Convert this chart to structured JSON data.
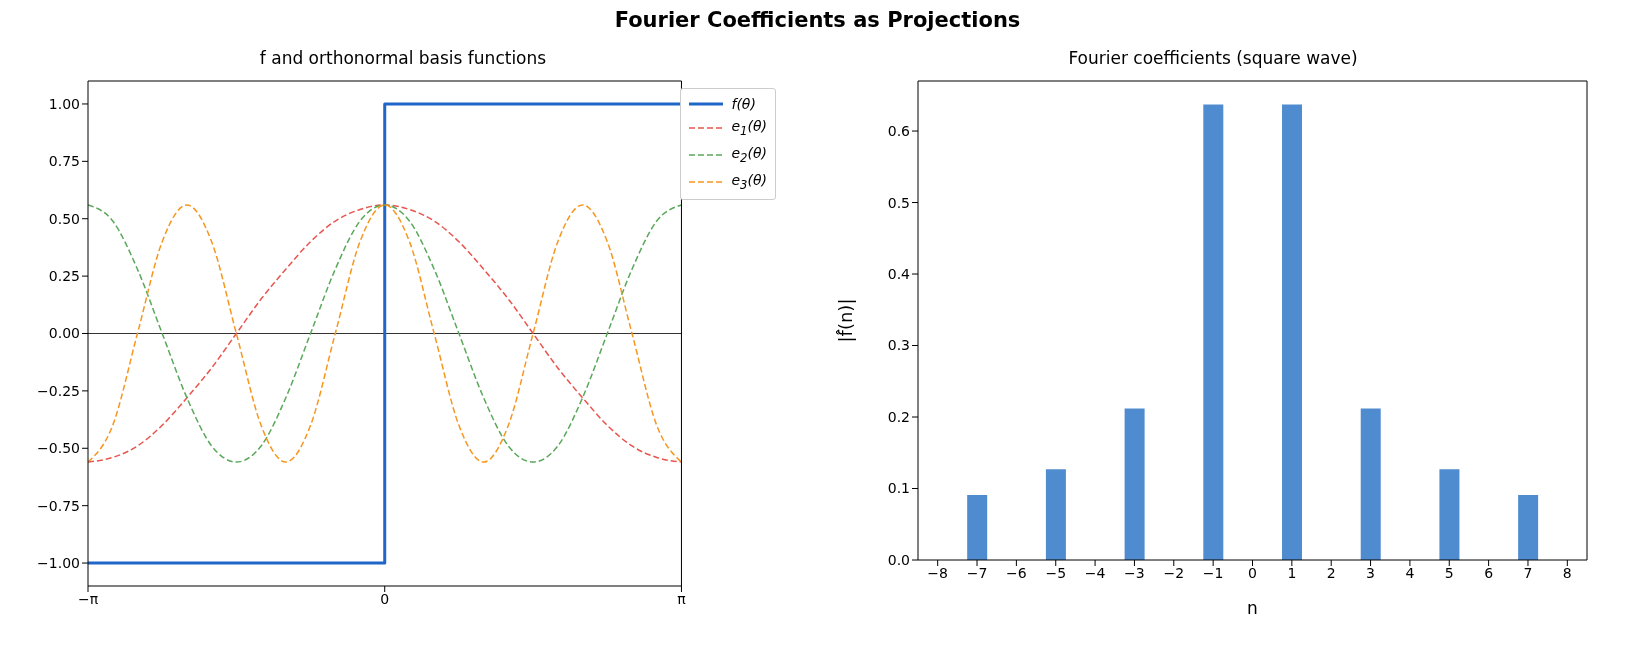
{
  "chart_data": [
    {
      "type": "line",
      "title": "Fourier Coefficients as Projections",
      "subtitle": "f and orthonormal basis functions",
      "xlim": [
        -3.1416,
        3.1416
      ],
      "xticks": [
        {
          "value": -3.1416,
          "label": "−π"
        },
        0,
        {
          "value": 3.1416,
          "label": "π"
        }
      ],
      "ylim": [
        -1.1,
        1.1
      ],
      "yticks": [
        {
          "value": -1,
          "label": "−1.00"
        },
        {
          "value": -0.75,
          "label": "−0.75"
        },
        {
          "value": -0.5,
          "label": "−0.50"
        },
        {
          "value": -0.25,
          "label": "−0.25"
        },
        {
          "value": 0,
          "label": "0.00"
        },
        {
          "value": 0.25,
          "label": "0.25"
        },
        {
          "value": 0.5,
          "label": "0.50"
        },
        {
          "value": 0.75,
          "label": "0.75"
        },
        {
          "value": 1,
          "label": "1.00"
        }
      ],
      "legend": "top right",
      "marker": "none",
      "ref_lines": [
        {
          "axis": "y",
          "value": 0,
          "color": "#000000"
        }
      ],
      "series": [
        {
          "name": "f(θ)",
          "type": "step",
          "color": "#1f66c8",
          "line_style": "solid",
          "x": [
            -3.1416,
            0,
            3.1416
          ],
          "values": [
            -1,
            1,
            1
          ]
        },
        {
          "name": "e$_{1}$(θ)",
          "type": "line",
          "color": "#e8554e",
          "line_style": "dashed",
          "x": [
            -3.1416,
            -2.8798,
            -2.618,
            -2.3562,
            -2.0944,
            -1.8326,
            -1.5708,
            -1.309,
            -1.0472,
            -0.7854,
            -0.5236,
            -0.2618,
            0,
            0.2618,
            0.5236,
            0.7854,
            1.0472,
            1.309,
            1.5708,
            1.8326,
            2.0944,
            2.3562,
            2.618,
            2.8798,
            3.1416
          ],
          "values": [
            -0.56,
            -0.54,
            -0.49,
            -0.4,
            -0.28,
            -0.15,
            0,
            0.15,
            0.28,
            0.4,
            0.49,
            0.54,
            0.56,
            0.54,
            0.49,
            0.4,
            0.28,
            0.15,
            0,
            -0.15,
            -0.28,
            -0.4,
            -0.49,
            -0.54,
            -0.56
          ]
        },
        {
          "name": "e$_{2}$(θ)",
          "type": "line",
          "color": "#5aa85a",
          "line_style": "dashed",
          "x": [
            -3.1416,
            -2.8798,
            -2.618,
            -2.3562,
            -2.0944,
            -1.8326,
            -1.5708,
            -1.309,
            -1.0472,
            -0.7854,
            -0.5236,
            -0.2618,
            0,
            0.2618,
            0.5236,
            0.7854,
            1.0472,
            1.309,
            1.5708,
            1.8326,
            2.0944,
            2.3562,
            2.618,
            2.8798,
            3.1416
          ],
          "values": [
            0.56,
            0.49,
            0.28,
            0,
            -0.28,
            -0.49,
            -0.56,
            -0.49,
            -0.28,
            0,
            0.28,
            0.49,
            0.56,
            0.49,
            0.28,
            0,
            -0.28,
            -0.49,
            -0.56,
            -0.49,
            -0.28,
            0,
            0.28,
            0.49,
            0.56
          ]
        },
        {
          "name": "e$_{3}$(θ)",
          "type": "line",
          "color": "#f7961e",
          "line_style": "dashed",
          "x": [
            -3.1416,
            -2.8798,
            -2.618,
            -2.3562,
            -2.0944,
            -1.8326,
            -1.5708,
            -1.309,
            -1.0472,
            -0.7854,
            -0.5236,
            -0.2618,
            0,
            0.2618,
            0.5236,
            0.7854,
            1.0472,
            1.309,
            1.5708,
            1.8326,
            2.0944,
            2.3562,
            2.618,
            2.8798,
            3.1416
          ],
          "values": [
            -0.56,
            -0.4,
            0,
            0.4,
            0.56,
            0.4,
            0,
            -0.4,
            -0.56,
            -0.4,
            0,
            0.4,
            0.56,
            0.4,
            0,
            -0.4,
            -0.56,
            -0.4,
            0,
            0.4,
            0.56,
            0.4,
            0,
            -0.4,
            -0.56
          ]
        }
      ]
    },
    {
      "type": "bar",
      "subtitle": "Fourier coefficients (square wave)",
      "xlabel": "n",
      "ylabel": "|f̂(n)|",
      "categories": [
        "−8",
        "−7",
        "−6",
        "−5",
        "−4",
        "−3",
        "−2",
        "−1",
        "0",
        "1",
        "2",
        "3",
        "4",
        "5",
        "6",
        "7",
        "8"
      ],
      "ylim": [
        0,
        0.67
      ],
      "yticks": [
        {
          "value": 0,
          "label": "0.0"
        },
        0.1,
        0.2,
        0.3,
        0.4,
        0.5,
        0.6
      ],
      "series": [
        {
          "color": "#4f8bcf",
          "values": [
            0,
            0.091,
            0,
            0.127,
            0,
            0.212,
            0,
            0.637,
            0,
            0.637,
            0,
            0.212,
            0,
            0.127,
            0,
            0.091,
            0
          ]
        }
      ]
    }
  ]
}
